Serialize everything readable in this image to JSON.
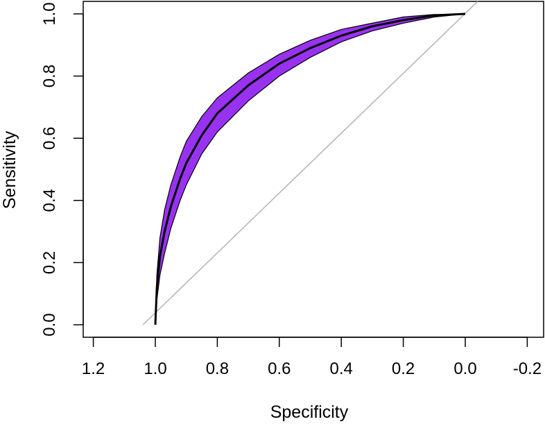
{
  "chart_data": {
    "type": "line",
    "title": "",
    "xlabel": "Specificity",
    "ylabel": "Sensitivity",
    "x_reversed": true,
    "xlim": [
      1.2,
      -0.2
    ],
    "ylim": [
      0.0,
      1.0
    ],
    "x_ticks": [
      "1.2",
      "1.0",
      "0.8",
      "0.6",
      "0.4",
      "0.2",
      "0.0",
      "-0.2"
    ],
    "x_tick_values": [
      1.2,
      1.0,
      0.8,
      0.6,
      0.4,
      0.2,
      0.0,
      -0.2
    ],
    "y_ticks": [
      "0.0",
      "0.2",
      "0.4",
      "0.6",
      "0.8",
      "1.0"
    ],
    "y_tick_values": [
      0.0,
      0.2,
      0.4,
      0.6,
      0.8,
      1.0
    ],
    "grid": false,
    "legend": "none",
    "colors": {
      "band_fill": "#9932f0",
      "band_edge": "#000000",
      "roc_line": "#000000",
      "diagonal": "#b3b3b3",
      "frame": "#000000"
    },
    "series": [
      {
        "role": "roc-curve",
        "x": [
          1.0,
          0.995,
          0.985,
          0.97,
          0.95,
          0.92,
          0.9,
          0.85,
          0.8,
          0.7,
          0.6,
          0.5,
          0.4,
          0.3,
          0.2,
          0.1,
          0.0
        ],
        "y": [
          0.0,
          0.12,
          0.22,
          0.3,
          0.38,
          0.47,
          0.52,
          0.61,
          0.68,
          0.77,
          0.84,
          0.89,
          0.93,
          0.96,
          0.98,
          0.995,
          1.0
        ]
      },
      {
        "role": "ci-upper",
        "x": [
          1.0,
          0.995,
          0.985,
          0.97,
          0.95,
          0.92,
          0.9,
          0.85,
          0.8,
          0.7,
          0.6,
          0.5,
          0.4,
          0.3,
          0.2,
          0.1,
          0.0
        ],
        "y": [
          0.0,
          0.16,
          0.28,
          0.37,
          0.45,
          0.54,
          0.59,
          0.67,
          0.73,
          0.81,
          0.87,
          0.915,
          0.95,
          0.97,
          0.99,
          0.998,
          1.0
        ]
      },
      {
        "role": "ci-lower",
        "x": [
          1.0,
          0.995,
          0.985,
          0.97,
          0.95,
          0.92,
          0.9,
          0.85,
          0.8,
          0.7,
          0.6,
          0.5,
          0.4,
          0.3,
          0.2,
          0.1,
          0.0
        ],
        "y": [
          0.0,
          0.08,
          0.16,
          0.23,
          0.31,
          0.4,
          0.45,
          0.55,
          0.62,
          0.72,
          0.8,
          0.86,
          0.91,
          0.945,
          0.97,
          0.99,
          1.0
        ]
      },
      {
        "role": "reference-diagonal",
        "x": [
          1.04,
          -0.04
        ],
        "y": [
          0.0,
          1.04
        ]
      }
    ]
  }
}
